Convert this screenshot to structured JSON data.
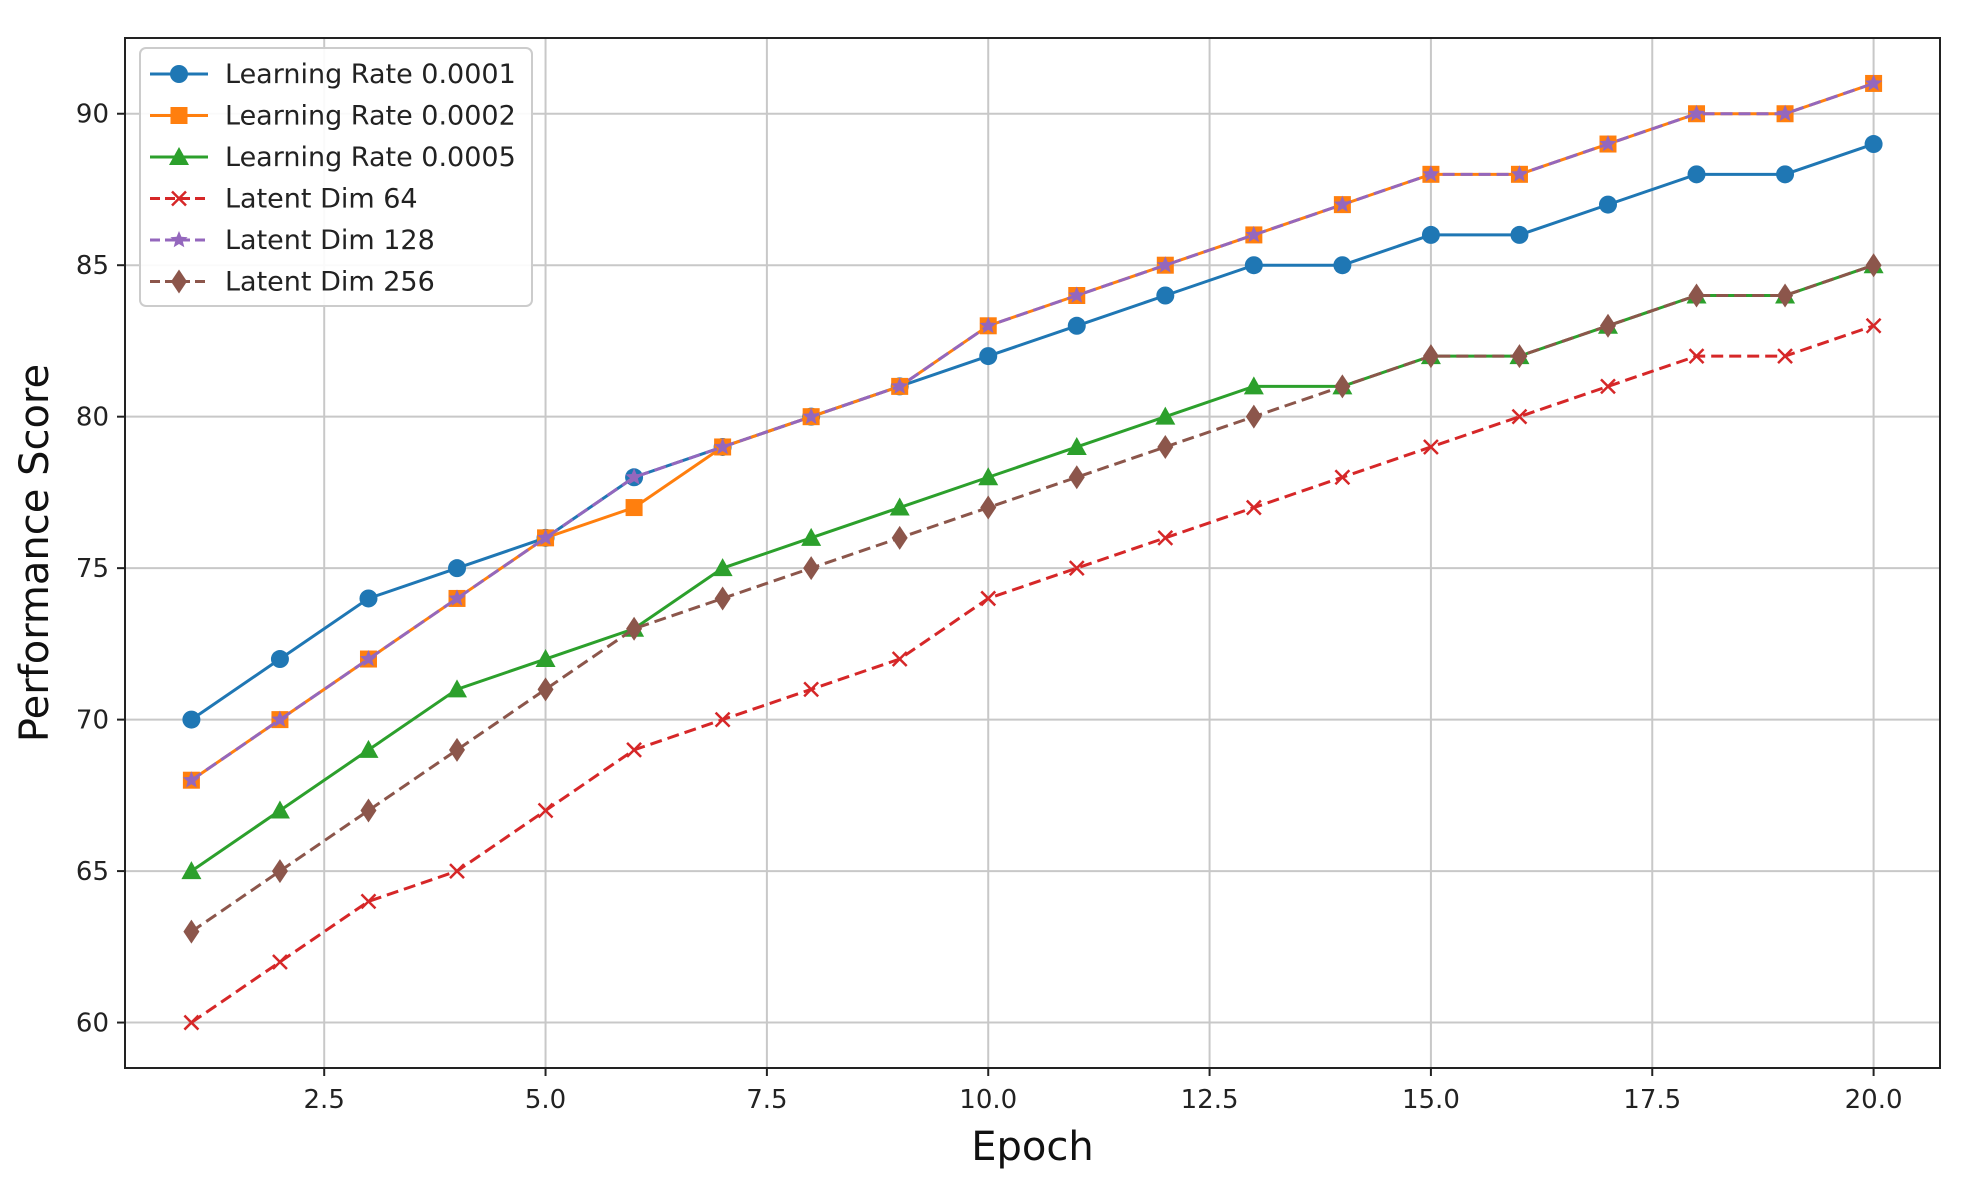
{
  "chart_data": {
    "type": "line",
    "title": "",
    "xlabel": "Epoch",
    "ylabel": "Performance Score",
    "xlim": [
      0.25,
      20.75
    ],
    "ylim": [
      58.5,
      92.5
    ],
    "xticks": [
      "2.5",
      "5.0",
      "7.5",
      "10.0",
      "12.5",
      "15.0",
      "17.5",
      "20.0"
    ],
    "yticks": [
      "60",
      "65",
      "70",
      "75",
      "80",
      "85",
      "90"
    ],
    "grid": true,
    "legend_position": "top-left",
    "x": [
      1,
      2,
      3,
      4,
      5,
      6,
      7,
      8,
      9,
      10,
      11,
      12,
      13,
      14,
      15,
      16,
      17,
      18,
      19,
      20
    ],
    "series": [
      {
        "name": "Learning Rate 0.0001",
        "color": "#1f77b4",
        "dash": "solid",
        "marker": "circle",
        "values": [
          70,
          72,
          74,
          75,
          76,
          78,
          79,
          80,
          81,
          82,
          83,
          84,
          85,
          85,
          86,
          86,
          87,
          88,
          88,
          89
        ]
      },
      {
        "name": "Learning Rate 0.0002",
        "color": "#ff7f0e",
        "dash": "solid",
        "marker": "square",
        "values": [
          68,
          70,
          72,
          74,
          76,
          77,
          79,
          80,
          81,
          83,
          84,
          85,
          86,
          87,
          88,
          88,
          89,
          90,
          90,
          91
        ]
      },
      {
        "name": "Learning Rate 0.0005",
        "color": "#2ca02c",
        "dash": "solid",
        "marker": "triangle",
        "values": [
          65,
          67,
          69,
          71,
          72,
          73,
          75,
          76,
          77,
          78,
          79,
          80,
          81,
          81,
          82,
          82,
          83,
          84,
          84,
          85
        ]
      },
      {
        "name": "Latent Dim 64",
        "color": "#d62728",
        "dash": "dashed",
        "marker": "x",
        "values": [
          60,
          62,
          64,
          65,
          67,
          69,
          70,
          71,
          72,
          74,
          75,
          76,
          77,
          78,
          79,
          80,
          81,
          82,
          82,
          83
        ]
      },
      {
        "name": "Latent Dim 128",
        "color": "#9467bd",
        "dash": "dashed",
        "marker": "star",
        "values": [
          68,
          70,
          72,
          74,
          76,
          78,
          79,
          80,
          81,
          83,
          84,
          85,
          86,
          87,
          88,
          88,
          89,
          90,
          90,
          91
        ]
      },
      {
        "name": "Latent Dim 256",
        "color": "#8c564b",
        "dash": "dashed",
        "marker": "diamond",
        "values": [
          63,
          65,
          67,
          69,
          71,
          73,
          74,
          75,
          76,
          77,
          78,
          79,
          80,
          81,
          82,
          82,
          83,
          84,
          84,
          85
        ]
      }
    ]
  }
}
